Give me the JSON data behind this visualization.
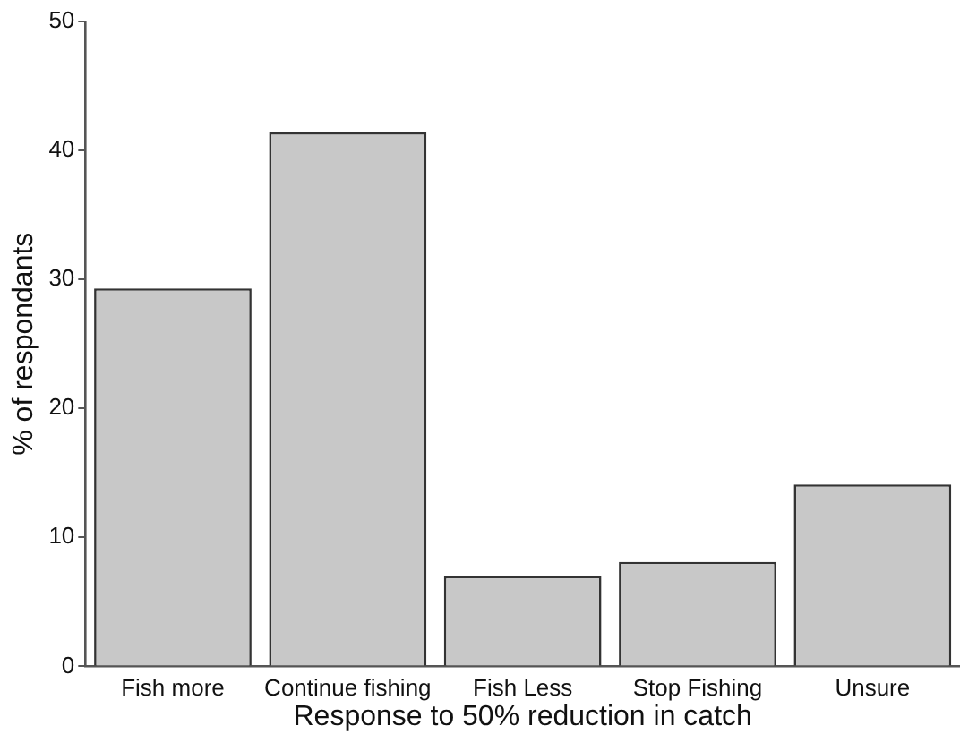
{
  "chart_data": {
    "type": "bar",
    "xlabel": "Response to 50% reduction in catch",
    "ylabel": "% of respondants",
    "categories": [
      "Fish more",
      "Continue fishing",
      "Fish Less",
      "Stop Fishing",
      "Unsure"
    ],
    "values": [
      29.3,
      41.4,
      7.0,
      8.1,
      14.1
    ],
    "color": "#c8c8c8",
    "ylim": [
      0,
      50
    ],
    "yticks": [
      0,
      10,
      20,
      30,
      40,
      50
    ],
    "grid": false
  }
}
